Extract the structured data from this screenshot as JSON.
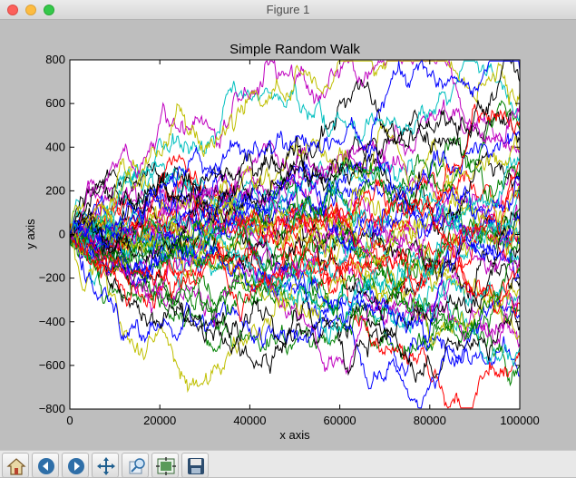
{
  "window": {
    "title": "Figure 1"
  },
  "toolbar": {
    "buttons": [
      "home-icon",
      "back-icon",
      "forward-icon",
      "pan-icon",
      "zoom-icon",
      "configure-subplots-icon",
      "save-icon"
    ]
  },
  "colors": {
    "series_palette": [
      "#0000ff",
      "#008000",
      "#ff0000",
      "#00bfbf",
      "#bf00bf",
      "#bfbf00",
      "#000000"
    ]
  },
  "chart_data": {
    "type": "line",
    "title": "Simple Random Walk",
    "xlabel": "x axis",
    "ylabel": "y axis",
    "xlim": [
      0,
      100000
    ],
    "ylim": [
      -800,
      800
    ],
    "xticks": [
      "0",
      "20000",
      "40000",
      "60000",
      "80000",
      "100000"
    ],
    "yticks": [
      "800",
      "600",
      "400",
      "200",
      "0",
      "−200",
      "−400",
      "−600",
      "−800"
    ],
    "grid": false,
    "legend": "none",
    "series_count": 50,
    "approx_endpoints_at_x_100000": [
      -650,
      -600,
      -560,
      -520,
      -500,
      -470,
      -420,
      -380,
      -350,
      -320,
      -300,
      -280,
      -250,
      -220,
      -200,
      -170,
      -150,
      -120,
      -100,
      -80,
      -60,
      -40,
      -20,
      0,
      20,
      40,
      60,
      80,
      100,
      120,
      150,
      170,
      200,
      220,
      250,
      270,
      300,
      320,
      350,
      380,
      400,
      430,
      450,
      480,
      520,
      550,
      600,
      650,
      700,
      750
    ]
  }
}
